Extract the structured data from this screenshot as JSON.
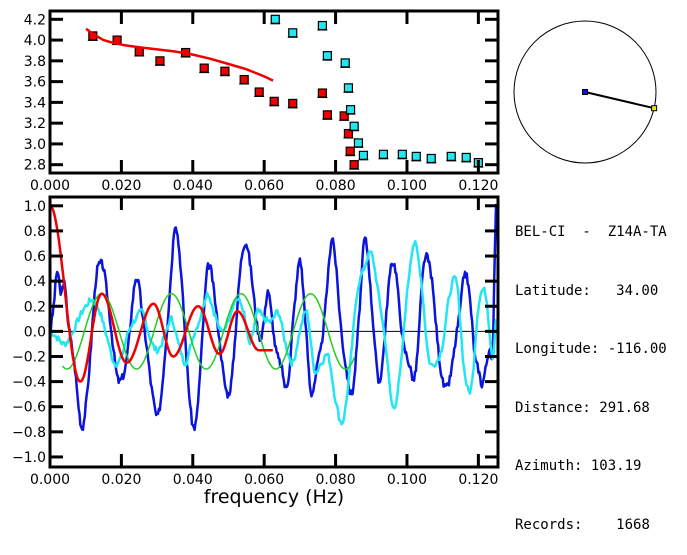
{
  "chart_data": [
    {
      "id": "dispersion",
      "type": "scatter",
      "title": "",
      "xlabel": "",
      "ylabel": "",
      "xlim": [
        0.0,
        0.1255
      ],
      "ylim": [
        2.72,
        4.28
      ],
      "x_ticks": [
        0.0,
        0.02,
        0.04,
        0.06,
        0.08,
        0.1,
        0.12
      ],
      "x_tick_labels": [
        "0.000",
        "0.020",
        "0.040",
        "0.060",
        "0.080",
        "0.100",
        "0.120"
      ],
      "y_ticks": [
        2.8,
        3.0,
        3.2,
        3.4,
        3.6,
        3.8,
        4.0,
        4.2
      ],
      "y_tick_labels": [
        "2.8",
        "3.0",
        "3.2",
        "3.4",
        "3.6",
        "3.8",
        "4.0",
        "4.2"
      ],
      "grid": false,
      "series": [
        {
          "name": "red-points",
          "kind": "scatter",
          "color": "#ee0000",
          "x": [
            0.012,
            0.0188,
            0.025,
            0.0308,
            0.038,
            0.0432,
            0.049,
            0.0544,
            0.0586,
            0.0628,
            0.068,
            0.0763,
            0.0777,
            0.0824,
            0.0836,
            0.0841,
            0.0852
          ],
          "y": [
            4.04,
            4.0,
            3.89,
            3.8,
            3.88,
            3.73,
            3.7,
            3.62,
            3.5,
            3.41,
            3.39,
            3.49,
            3.28,
            3.27,
            3.1,
            2.93,
            2.8
          ]
        },
        {
          "name": "cyan-points",
          "kind": "scatter",
          "color": "#22e6f0",
          "x": [
            0.0631,
            0.068,
            0.0763,
            0.0777,
            0.0827,
            0.0836,
            0.0842,
            0.0852,
            0.0864,
            0.0878,
            0.0934,
            0.0987,
            0.1026,
            0.1068,
            0.1124,
            0.1166,
            0.12
          ],
          "y": [
            4.2,
            4.07,
            4.14,
            3.85,
            3.78,
            3.54,
            3.33,
            3.17,
            3.01,
            2.89,
            2.9,
            2.9,
            2.88,
            2.86,
            2.88,
            2.87,
            2.82
          ]
        },
        {
          "name": "model-curve",
          "kind": "line",
          "color": "#ee0000",
          "x": [
            0.0101,
            0.012,
            0.015,
            0.018,
            0.021,
            0.025,
            0.03,
            0.035,
            0.04,
            0.045,
            0.05,
            0.055,
            0.06,
            0.0625
          ],
          "y": [
            4.11,
            4.06,
            4.0,
            3.97,
            3.95,
            3.93,
            3.91,
            3.89,
            3.86,
            3.82,
            3.77,
            3.72,
            3.65,
            3.61
          ]
        }
      ]
    },
    {
      "id": "correlation",
      "type": "line",
      "title": "",
      "xlabel": "frequency (Hz)",
      "ylabel": "",
      "xlim": [
        0.0,
        0.1255
      ],
      "ylim": [
        -1.08,
        1.07
      ],
      "x_ticks": [
        0.0,
        0.02,
        0.04,
        0.06,
        0.08,
        0.1,
        0.12
      ],
      "x_tick_labels": [
        "0.000",
        "0.020",
        "0.040",
        "0.060",
        "0.080",
        "0.100",
        "0.120"
      ],
      "y_ticks": [
        -1.0,
        -0.8,
        -0.6,
        -0.4,
        -0.2,
        0.0,
        0.2,
        0.4,
        0.6,
        0.8,
        1.0
      ],
      "y_tick_labels": [
        "−1.0",
        "−0.8",
        "−0.6",
        "−0.4",
        "−0.2",
        "0.0",
        "0.2",
        "0.4",
        "0.6",
        "0.8",
        "1.0"
      ],
      "zero_line": true,
      "grid": false,
      "series": [
        {
          "name": "blue-data",
          "color": "#0a14dc",
          "x": [
            0.0,
            0.001,
            0.002,
            0.003,
            0.004,
            0.005,
            0.006,
            0.007,
            0.008,
            0.009,
            0.01,
            0.011,
            0.012,
            0.013,
            0.014,
            0.015,
            0.016,
            0.017,
            0.018,
            0.019,
            0.02,
            0.021,
            0.022,
            0.023,
            0.024,
            0.025,
            0.026,
            0.027,
            0.028,
            0.029,
            0.03,
            0.031,
            0.032,
            0.033,
            0.034,
            0.035,
            0.036,
            0.037,
            0.038,
            0.039,
            0.04,
            0.041,
            0.042,
            0.043,
            0.044,
            0.045,
            0.046,
            0.047,
            0.048,
            0.049,
            0.05,
            0.051,
            0.052,
            0.053,
            0.054,
            0.055,
            0.056,
            0.057,
            0.058,
            0.059,
            0.06,
            0.061,
            0.062,
            0.063,
            0.064,
            0.065,
            0.066,
            0.067,
            0.068,
            0.069,
            0.07,
            0.071,
            0.072,
            0.073,
            0.074,
            0.075,
            0.076,
            0.077,
            0.078,
            0.079,
            0.08,
            0.081,
            0.082,
            0.083,
            0.084,
            0.085,
            0.086,
            0.087,
            0.088,
            0.089,
            0.09,
            0.091,
            0.092,
            0.093,
            0.094,
            0.095,
            0.096,
            0.097,
            0.098,
            0.099,
            0.1,
            0.101,
            0.102,
            0.103,
            0.104,
            0.105,
            0.106,
            0.107,
            0.108,
            0.109,
            0.11,
            0.111,
            0.112,
            0.113,
            0.114,
            0.115,
            0.116,
            0.117,
            0.118,
            0.119,
            0.12,
            0.121,
            0.122,
            0.123,
            0.124,
            0.1245,
            0.125
          ],
          "y": [
            0.0,
            0.2,
            0.48,
            0.3,
            0.38,
            0.1,
            -0.1,
            -0.3,
            -0.6,
            -0.77,
            -0.6,
            -0.3,
            0.1,
            0.45,
            0.54,
            0.5,
            0.3,
            0.05,
            -0.2,
            -0.38,
            -0.38,
            -0.3,
            -0.1,
            0.2,
            0.42,
            0.35,
            0.1,
            -0.1,
            -0.35,
            -0.55,
            -0.68,
            -0.55,
            -0.25,
            0.1,
            0.5,
            0.85,
            0.7,
            0.35,
            -0.1,
            -0.5,
            -0.75,
            -0.7,
            -0.35,
            0.1,
            0.48,
            0.5,
            0.3,
            0.05,
            -0.2,
            -0.42,
            -0.5,
            -0.35,
            0.0,
            0.4,
            0.65,
            0.7,
            0.55,
            0.3,
            0.05,
            -0.05,
            0.1,
            0.33,
            0.15,
            -0.1,
            -0.22,
            -0.3,
            -0.45,
            -0.32,
            0.05,
            0.35,
            0.58,
            0.3,
            -0.1,
            -0.48,
            -0.42,
            -0.25,
            -0.12,
            0.15,
            0.48,
            0.75,
            0.55,
            0.2,
            -0.1,
            -0.3,
            -0.48,
            -0.44,
            -0.1,
            0.3,
            0.72,
            0.62,
            0.25,
            -0.1,
            -0.4,
            -0.28,
            0.05,
            0.4,
            0.55,
            0.45,
            0.15,
            -0.1,
            -0.2,
            -0.3,
            -0.38,
            -0.15,
            0.3,
            0.58,
            0.56,
            0.4,
            0.1,
            -0.2,
            -0.4,
            -0.45,
            -0.38,
            -0.2,
            0.0,
            0.2,
            0.45,
            0.4,
            0.15,
            -0.2,
            -0.3,
            -0.42,
            -0.3,
            -0.15,
            -0.2,
            0.5,
            1.0
          ]
        },
        {
          "name": "cyan-data",
          "color": "#22e6f0",
          "x": [
            0.0,
            0.002,
            0.004,
            0.006,
            0.008,
            0.01,
            0.012,
            0.014,
            0.016,
            0.018,
            0.02,
            0.022,
            0.024,
            0.026,
            0.028,
            0.03,
            0.032,
            0.034,
            0.036,
            0.038,
            0.04,
            0.042,
            0.044,
            0.046,
            0.048,
            0.05,
            0.052,
            0.054,
            0.056,
            0.058,
            0.06,
            0.062,
            0.064,
            0.066,
            0.068,
            0.07,
            0.072,
            0.074,
            0.076,
            0.078,
            0.08,
            0.082,
            0.084,
            0.086,
            0.088,
            0.09,
            0.092,
            0.094,
            0.096,
            0.098,
            0.1,
            0.102,
            0.104,
            0.106,
            0.108,
            0.11,
            0.112,
            0.114,
            0.116,
            0.118,
            0.12,
            0.122,
            0.124,
            0.125
          ],
          "y": [
            0.0,
            -0.05,
            -0.1,
            -0.03,
            0.1,
            0.2,
            0.25,
            0.15,
            -0.05,
            -0.25,
            -0.2,
            0.0,
            0.1,
            0.15,
            -0.05,
            -0.15,
            -0.05,
            0.1,
            -0.1,
            -0.25,
            -0.05,
            0.1,
            0.3,
            0.15,
            0.0,
            0.1,
            0.25,
            0.18,
            -0.1,
            0.15,
            0.1,
            0.08,
            0.15,
            -0.1,
            -0.25,
            0.0,
            0.15,
            -0.3,
            -0.25,
            -0.2,
            -0.55,
            -0.72,
            -0.3,
            0.3,
            0.5,
            0.62,
            0.3,
            -0.1,
            -0.6,
            -0.35,
            0.3,
            0.7,
            0.4,
            -0.2,
            -0.25,
            -0.1,
            0.3,
            0.38,
            -0.3,
            -0.45,
            0.2,
            0.3,
            -0.2,
            0.1
          ]
        },
        {
          "name": "green-model",
          "color": "#22cc22",
          "function": "damped-cosine",
          "x_start": 0.0035,
          "x_end": 0.0855,
          "amplitude": 0.3,
          "decay_per_hz": 0.0,
          "period_hz": 0.0195,
          "phase_peak_hz": 0.0145
        },
        {
          "name": "red-model",
          "color": "#ee0000",
          "function": "bessel-like",
          "x_start": 0.0,
          "x_end": 0.0625,
          "peak_values": [
            1.0,
            -0.4,
            0.3,
            -0.25,
            0.22,
            -0.2,
            0.2,
            -0.18,
            0.16,
            -0.15
          ]
        }
      ]
    }
  ],
  "map": {
    "label": "station-azimuth-map",
    "azimuth_deg": 103.19,
    "center_color": "#0a14dc",
    "station_color": "#f0e020"
  },
  "info": {
    "title": "BEL-CI  -  Z14A-TA",
    "rows": [
      {
        "label": "Latitude:",
        "value": "   34.00"
      },
      {
        "label": "Longitude:",
        "value": " -116.00"
      },
      {
        "label": "Distance:",
        "value": " 291.68"
      },
      {
        "label": "Azimuth:",
        "value": " 103.19"
      },
      {
        "label": "Records:",
        "value": "    1668"
      }
    ]
  }
}
